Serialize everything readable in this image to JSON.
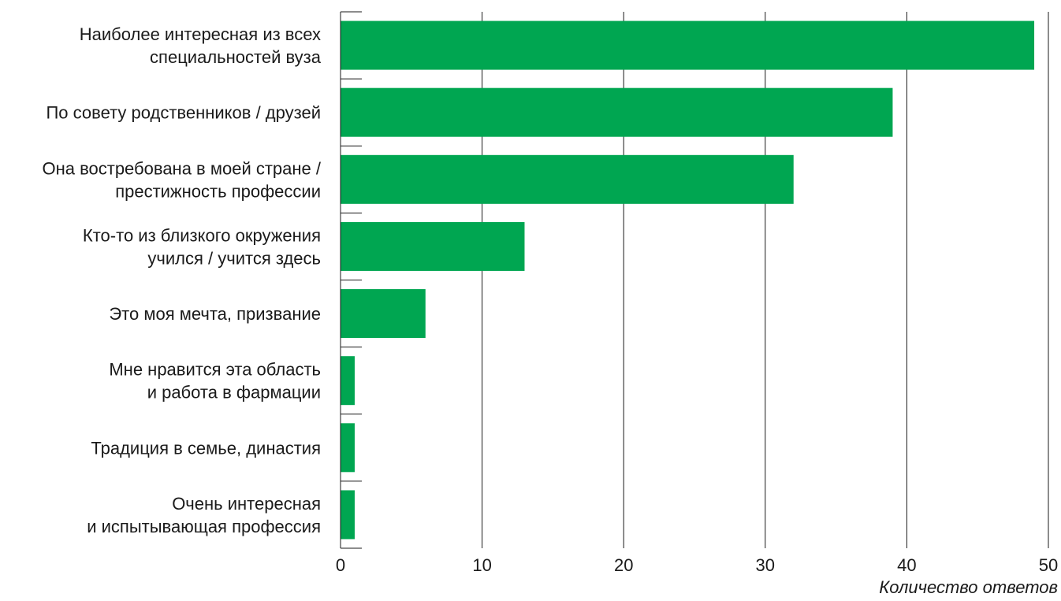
{
  "chart_data": {
    "type": "bar",
    "orientation": "horizontal",
    "categories": [
      [
        "Наиболее интересная из всех",
        "специальностей вуза"
      ],
      [
        "По совету родственников / друзей"
      ],
      [
        "Она востребована в моей стране /",
        "престижность профессии"
      ],
      [
        "Кто-то из близкого окружения",
        "учился / учится здесь"
      ],
      [
        "Это моя мечта, призвание"
      ],
      [
        "Мне нравится эта область",
        "и работа в фармации"
      ],
      [
        "Традиция в семье, династия"
      ],
      [
        "Очень интересная",
        "и испытывающая профессия"
      ]
    ],
    "values": [
      49,
      39,
      32,
      13,
      6,
      1,
      1,
      1
    ],
    "xlabel": "Количество ответов",
    "ylabel": "",
    "xlim": [
      0,
      50
    ],
    "xticks": [
      "0",
      "10",
      "20",
      "30",
      "40",
      "50"
    ],
    "grid": true,
    "bar_color": "#00a651",
    "grid_color": "#1a1a1a"
  }
}
